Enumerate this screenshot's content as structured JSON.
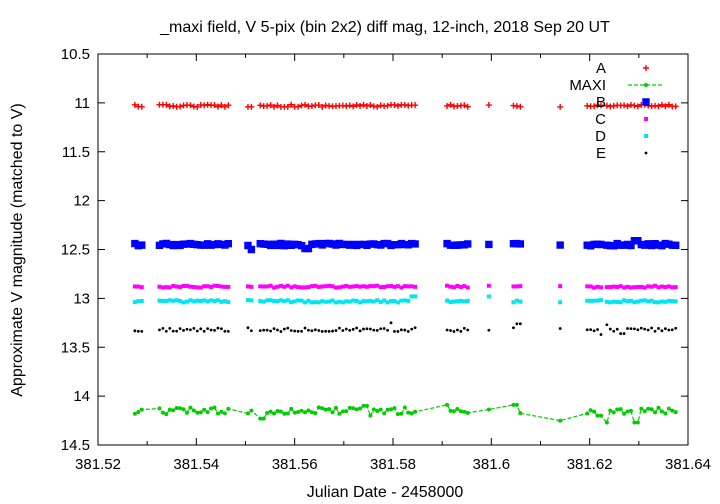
{
  "chart_data": {
    "type": "scatter",
    "title": "_maxi field, V 5-pix (bin 2x2) diff mag, 12-inch, 2018 Sep 20 UT",
    "xlabel": "Julian Date - 2458000",
    "ylabel": "Approximate V magnitude (matched to V)",
    "xlim": [
      381.52,
      381.64
    ],
    "ylim": [
      10.5,
      14.5
    ],
    "y_inverted": true,
    "grid": false,
    "legend_position": "top-right",
    "x_ticks": [
      "381.52",
      "381.54",
      "381.56",
      "381.58",
      "381.6",
      "381.62",
      "381.64"
    ],
    "y_ticks": [
      "10.5",
      "11",
      "11.5",
      "12",
      "12.5",
      "13",
      "13.5",
      "14",
      "14.5"
    ],
    "series": [
      {
        "name": "A",
        "color": "#ff0000",
        "marker": "plus",
        "base": 11.03,
        "noise": 0.012,
        "spikes": []
      },
      {
        "name": "MAXI",
        "color": "#00cc00",
        "marker": "dot-line",
        "base": 14.15,
        "noise": 0.035,
        "spikes": [
          [
            381.5535,
            14.23
          ],
          [
            381.5745,
            14.1
          ],
          [
            381.5755,
            14.2
          ],
          [
            381.591,
            14.09
          ],
          [
            381.605,
            14.09
          ],
          [
            381.6145,
            14.25
          ],
          [
            381.622,
            14.2
          ],
          [
            381.623,
            14.27
          ],
          [
            381.6295,
            14.27
          ]
        ]
      },
      {
        "name": "B",
        "color": "#0000ff",
        "marker": "box",
        "base": 12.45,
        "noise": 0.012,
        "spikes": [
          [
            381.5515,
            12.5
          ],
          [
            381.5625,
            12.49
          ],
          [
            381.6295,
            12.41
          ]
        ]
      },
      {
        "name": "C",
        "color": "#ff00ff",
        "marker": "square",
        "base": 12.88,
        "noise": 0.01,
        "spikes": []
      },
      {
        "name": "D",
        "color": "#00e5ee",
        "marker": "square",
        "base": 13.03,
        "noise": 0.012,
        "spikes": [
          [
            381.584,
            12.98
          ],
          [
            381.6,
            12.98
          ],
          [
            381.6145,
            13.04
          ]
        ]
      },
      {
        "name": "E",
        "color": "#000000",
        "marker": "dot",
        "base": 13.32,
        "noise": 0.02,
        "spikes": [
          [
            381.5795,
            13.25
          ],
          [
            381.6055,
            13.26
          ],
          [
            381.6225,
            13.37
          ],
          [
            381.6235,
            13.27
          ],
          [
            381.6265,
            13.36
          ]
        ]
      }
    ],
    "sample_segments": [
      [
        381.5275,
        381.5295
      ],
      [
        381.5325,
        381.5465
      ],
      [
        381.5505,
        381.5515
      ],
      [
        381.553,
        381.5845
      ],
      [
        381.591,
        381.5955
      ],
      [
        381.5995,
        381.6
      ],
      [
        381.6045,
        381.6065
      ],
      [
        381.614,
        381.6145
      ],
      [
        381.6195,
        381.6225
      ],
      [
        381.6235,
        381.6375
      ]
    ],
    "sample_step": 0.0007
  }
}
